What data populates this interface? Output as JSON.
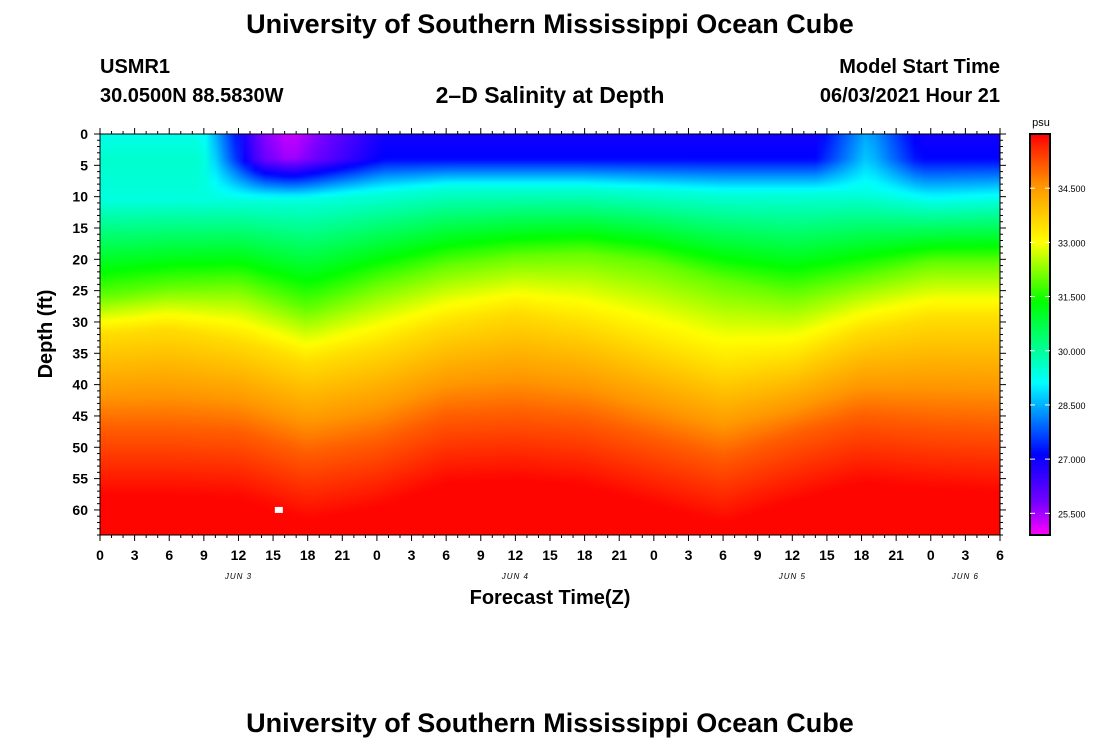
{
  "header": {
    "title": "University of Southern Mississippi Ocean Cube",
    "station_id": "USMR1",
    "station_coords": "30.0500N  88.5830W",
    "subtitle": "2–D Salinity at Depth",
    "start_label": "Model Start Time",
    "start_value": "06/03/2021 Hour 21"
  },
  "footer": {
    "title": "University of Southern Mississippi Ocean Cube"
  },
  "chart_data": {
    "type": "heatmap",
    "title": "2–D Salinity at Depth",
    "xlabel": "Forecast Time(Z)",
    "ylabel": "Depth (ft)",
    "x_ticks": [
      "0",
      "3",
      "6",
      "9",
      "12",
      "15",
      "18",
      "21",
      "0",
      "3",
      "6",
      "9",
      "12",
      "15",
      "18",
      "21",
      "0",
      "3",
      "6",
      "9",
      "12",
      "15",
      "18",
      "21",
      "0",
      "3",
      "6"
    ],
    "x_range_hours": [
      0,
      78
    ],
    "day_labels": [
      {
        "text": "JUN 3",
        "hour": 12
      },
      {
        "text": "JUN 4",
        "hour": 36
      },
      {
        "text": "JUN 5",
        "hour": 60
      },
      {
        "text": "JUN 6",
        "hour": 75
      }
    ],
    "y_ticks": [
      0,
      5,
      10,
      15,
      20,
      25,
      30,
      35,
      40,
      45,
      50,
      55,
      60
    ],
    "ylim": [
      0,
      64
    ],
    "y_inverted": true,
    "colorbar": {
      "unit": "psu",
      "range": [
        24.9,
        36.0
      ],
      "tick_values": [
        25.5,
        27.0,
        28.5,
        30.0,
        31.5,
        33.0,
        34.5
      ],
      "tick_labels": [
        "25.500",
        "27.000",
        "28.500",
        "30.000",
        "31.500",
        "33.000",
        "34.500"
      ]
    },
    "isolines_ft": {
      "hours": [
        0,
        6,
        12,
        18,
        24,
        30,
        36,
        42,
        48,
        54,
        60,
        66,
        72,
        78
      ],
      "fresh_bottom": [
        10.5,
        10.5,
        10.5,
        10.5,
        9.5,
        8.5,
        8.5,
        8.5,
        9.0,
        9.5,
        9.5,
        9.5,
        11.0,
        10.5
      ],
      "green_center": [
        26.0,
        24.5,
        24.0,
        28.0,
        24.0,
        21.0,
        19.5,
        19.0,
        20.5,
        23.5,
        25.5,
        23.0,
        20.5,
        20.5
      ],
      "yellow_front": [
        32.0,
        31.0,
        33.0,
        36.5,
        34.0,
        30.5,
        28.5,
        30.5,
        34.0,
        37.5,
        36.0,
        31.5,
        29.5,
        29.5
      ],
      "red_top": [
        47.0,
        47.0,
        47.5,
        51.0,
        49.0,
        45.0,
        44.5,
        45.5,
        48.5,
        51.5,
        48.0,
        45.0,
        46.0,
        46.5
      ]
    },
    "surface_min_psu": 25.2,
    "surface_min_hour": 16.5,
    "marker": {
      "hour": 15.5,
      "depth_ft": 60
    }
  }
}
